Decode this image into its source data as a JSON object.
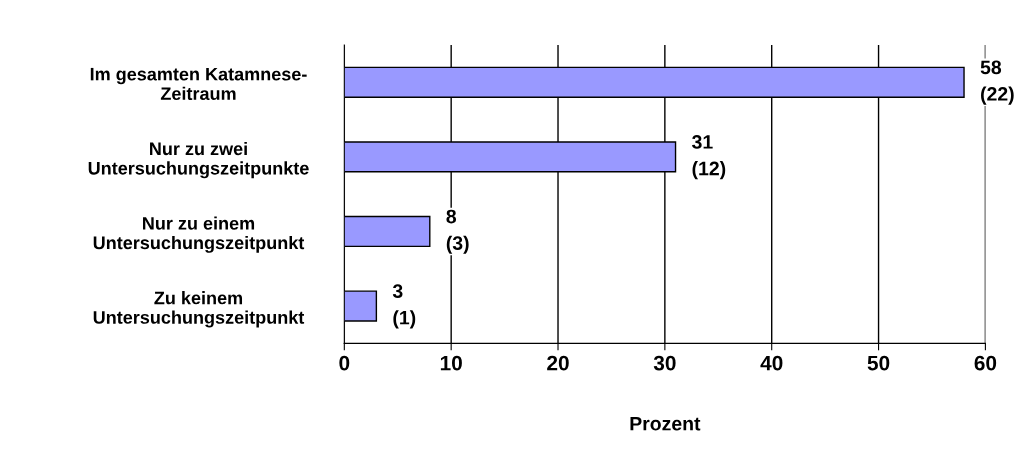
{
  "chart_data": {
    "type": "bar",
    "orientation": "horizontal",
    "xlabel": "Prozent",
    "categories": [
      "Im gesamten Katamnese-\nZeitraum",
      "Nur zu zwei\nUntersuchungszeitpunkte",
      "Nur zu einem\nUntersuchungszeitpunkt",
      "Zu keinem\nUntersuchungszeitpunkt"
    ],
    "values": [
      58,
      31,
      8,
      3
    ],
    "value_labels": [
      "58\n(22)",
      "31\n(12)",
      "8\n(3)",
      "3\n(1)"
    ],
    "color": "#9999ff",
    "xlim": [
      0,
      60
    ],
    "xticks": [
      0,
      10,
      20,
      30,
      40,
      50,
      60
    ],
    "grid": "x"
  }
}
